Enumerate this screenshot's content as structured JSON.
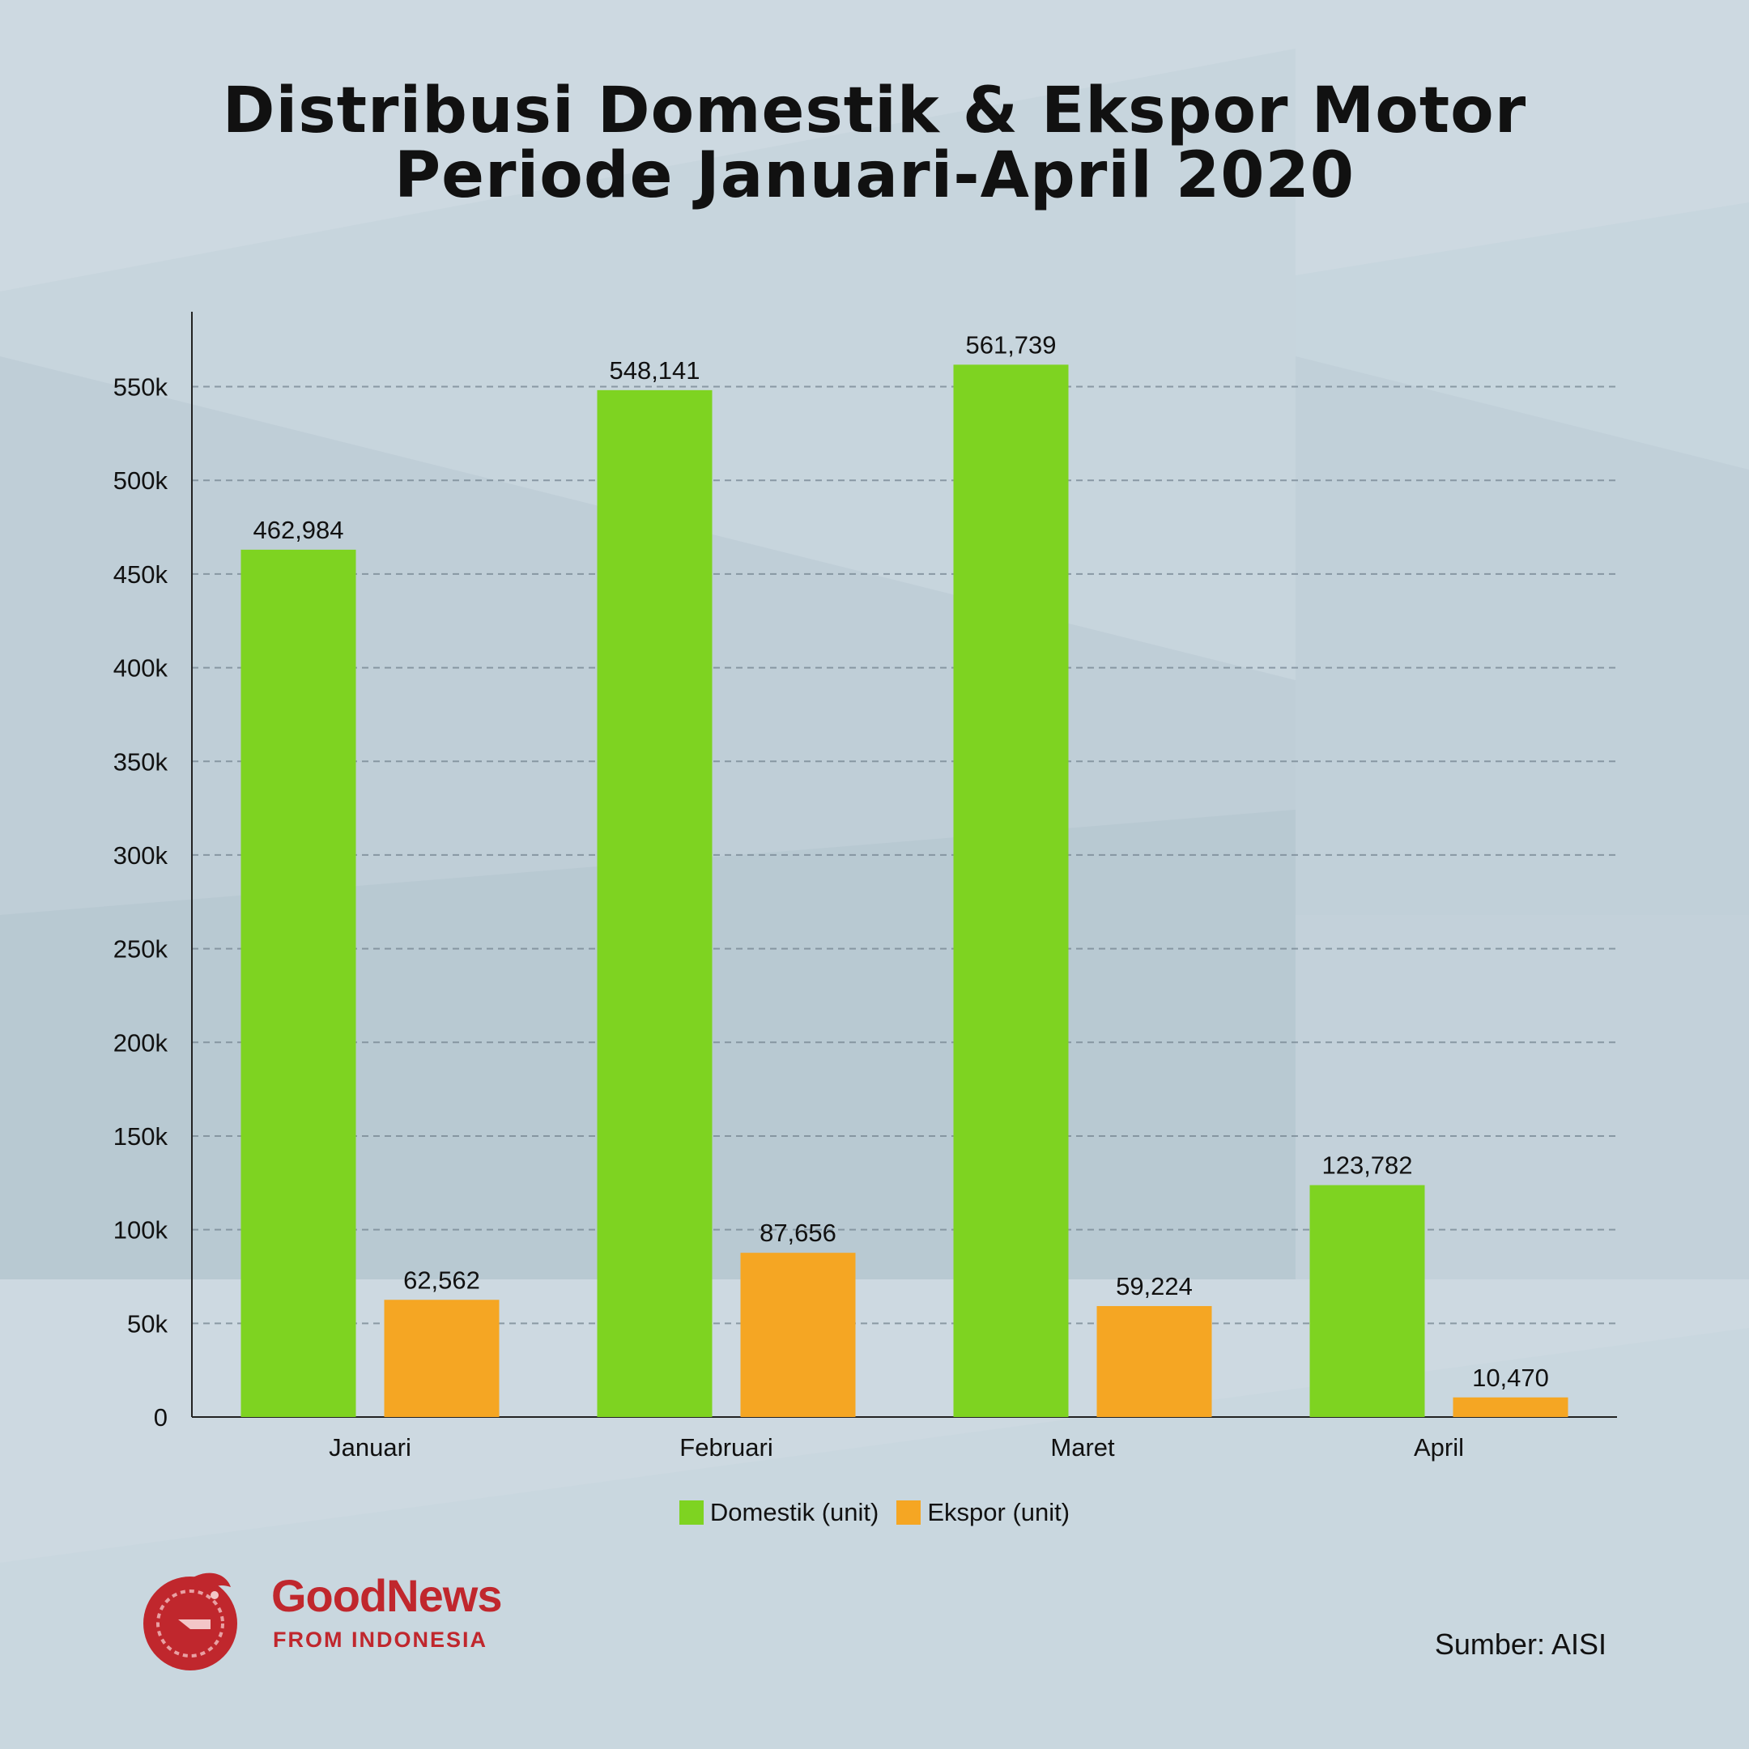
{
  "title_line_1": "Distribusi Domestik & Ekspor Motor",
  "title_line_2": "Periode Januari-April 2020",
  "source": "Sumber: AISI",
  "logo": {
    "name": "GoodNews",
    "tagline": "FROM INDONESIA",
    "color": "#c0272d"
  },
  "colors": {
    "domestik": "#7ed321",
    "ekspor": "#f5a623",
    "background": "#cdd9e1",
    "grid": "#7a8a96"
  },
  "chart_data": {
    "type": "bar",
    "categories": [
      "Januari",
      "Februari",
      "Maret",
      "April"
    ],
    "series": [
      {
        "name": "Domestik (unit)",
        "values": [
          462984,
          548141,
          561739,
          123782
        ],
        "labels": [
          "462,984",
          "548,141",
          "561,739",
          "123,782"
        ]
      },
      {
        "name": "Ekspor (unit)",
        "values": [
          62562,
          87656,
          59224,
          10470
        ],
        "labels": [
          "62,562",
          "87,656",
          "59,224",
          "10,470"
        ]
      }
    ],
    "ylim": [
      0,
      590000
    ],
    "yticks": [
      0,
      50000,
      100000,
      150000,
      200000,
      250000,
      300000,
      350000,
      400000,
      450000,
      500000,
      550000
    ],
    "ytick_labels": [
      "0",
      "50k",
      "100k",
      "150k",
      "200k",
      "250k",
      "300k",
      "350k",
      "400k",
      "450k",
      "500k",
      "550k"
    ],
    "grid": true,
    "legend_position": "bottom"
  }
}
